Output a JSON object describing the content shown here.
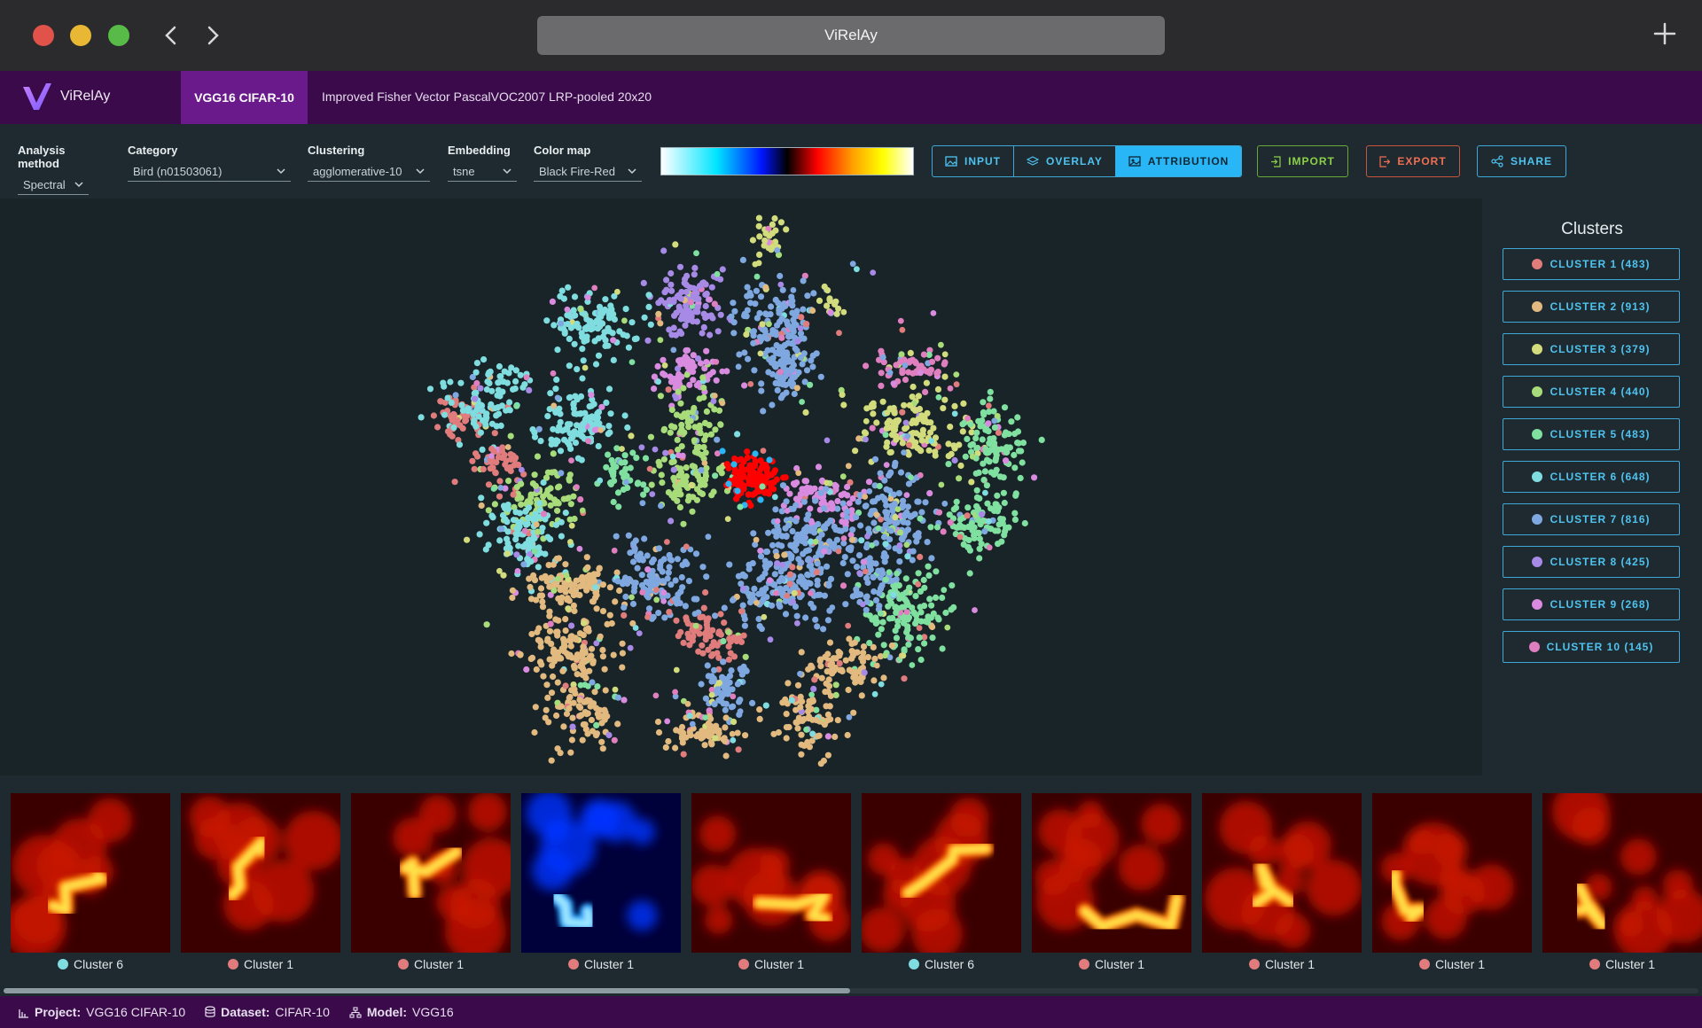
{
  "window": {
    "title": "ViRelAy"
  },
  "app": {
    "name": "ViRelAy",
    "model_tab": "VGG16 CIFAR-10",
    "method": "Improved Fisher Vector PascalVOC2007 LRP-pooled 20x20"
  },
  "toolbar": {
    "analysis_method": {
      "label": "Analysis method",
      "value": "Spectral"
    },
    "category": {
      "label": "Category",
      "value": "Bird (n01503061)"
    },
    "clustering": {
      "label": "Clustering",
      "value": "agglomerative-10"
    },
    "embedding": {
      "label": "Embedding",
      "value": "tsne"
    },
    "color_map": {
      "label": "Color map",
      "value": "Black Fire-Red"
    },
    "modes": [
      {
        "label": "INPUT",
        "icon": "image-icon",
        "active": false
      },
      {
        "label": "OVERLAY",
        "icon": "layers-icon",
        "active": false
      },
      {
        "label": "ATTRIBUTION",
        "icon": "heatmap-icon",
        "active": true
      }
    ],
    "import_label": "IMPORT",
    "export_label": "EXPORT",
    "share_label": "SHARE"
  },
  "clusters": {
    "title": "Clusters",
    "items": [
      {
        "label": "CLUSTER 1 (483)",
        "color": "#e07c7c"
      },
      {
        "label": "CLUSTER 2 (913)",
        "color": "#e2b97f"
      },
      {
        "label": "CLUSTER 3 (379)",
        "color": "#d3dc7d"
      },
      {
        "label": "CLUSTER 4 (440)",
        "color": "#a8dc7a"
      },
      {
        "label": "CLUSTER 5 (483)",
        "color": "#7fe0a0"
      },
      {
        "label": "CLUSTER 6 (648)",
        "color": "#7fdde0"
      },
      {
        "label": "CLUSTER 7 (816)",
        "color": "#7fa7e0"
      },
      {
        "label": "CLUSTER 8 (425)",
        "color": "#a789e6"
      },
      {
        "label": "CLUSTER 9 (268)",
        "color": "#d98be0"
      },
      {
        "label": "CLUSTER 10 (145)",
        "color": "#e07fbf"
      }
    ]
  },
  "gallery": [
    {
      "caption": "Cluster 6",
      "dot": "#7fdde0",
      "palette": "fire"
    },
    {
      "caption": "Cluster 1",
      "dot": "#e07c7c",
      "palette": "fire"
    },
    {
      "caption": "Cluster 1",
      "dot": "#e07c7c",
      "palette": "fire"
    },
    {
      "caption": "Cluster 1",
      "dot": "#e07c7c",
      "palette": "ice"
    },
    {
      "caption": "Cluster 1",
      "dot": "#e07c7c",
      "palette": "fire"
    },
    {
      "caption": "Cluster 6",
      "dot": "#7fdde0",
      "palette": "fire"
    },
    {
      "caption": "Cluster 1",
      "dot": "#e07c7c",
      "palette": "fire"
    },
    {
      "caption": "Cluster 1",
      "dot": "#e07c7c",
      "palette": "fire"
    },
    {
      "caption": "Cluster 1",
      "dot": "#e07c7c",
      "palette": "fire"
    },
    {
      "caption": "Cluster 1",
      "dot": "#e07c7c",
      "palette": "fire"
    }
  ],
  "footer": {
    "project_label": "Project:",
    "project_value": "VGG16 CIFAR-10",
    "dataset_label": "Dataset:",
    "dataset_value": "CIFAR-10",
    "model_label": "Model:",
    "model_value": "VGG16"
  },
  "colors": {
    "header_bg": "#3a0a4a",
    "model_tab_bg": "#6a1a8a",
    "accent": "#29b6f6",
    "selected_points": "#ff0000"
  }
}
